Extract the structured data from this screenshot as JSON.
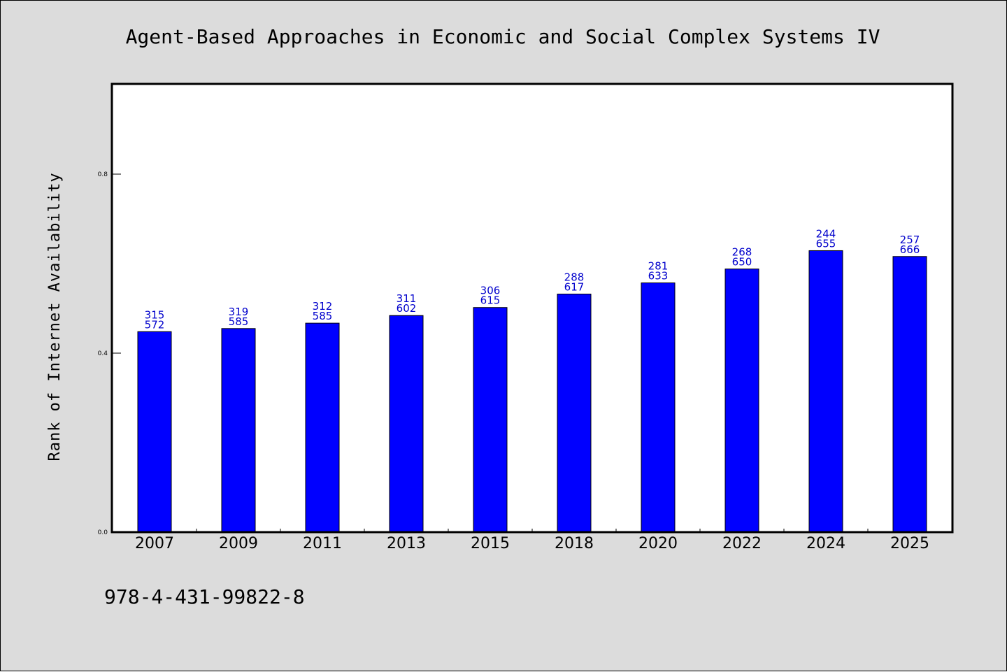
{
  "chart_data": {
    "type": "bar",
    "title": "Agent-Based Approaches in Economic and Social Complex Systems IV",
    "xlabel": "",
    "ylabel": "Rank of Internet Availability",
    "categories": [
      "2007",
      "2009",
      "2011",
      "2013",
      "2015",
      "2018",
      "2020",
      "2022",
      "2024",
      "2025"
    ],
    "values": [
      0.448,
      0.455,
      0.467,
      0.484,
      0.502,
      0.532,
      0.557,
      0.588,
      0.629,
      0.616
    ],
    "bar_labels_top": [
      "315",
      "319",
      "312",
      "311",
      "306",
      "288",
      "281",
      "268",
      "244",
      "257"
    ],
    "bar_labels_bottom": [
      "572",
      "585",
      "585",
      "602",
      "615",
      "617",
      "633",
      "650",
      "655",
      "666"
    ],
    "ylim": [
      0,
      1.0
    ],
    "yticks": [
      0.0,
      0.4,
      0.8
    ],
    "ytick_labels": [
      "0.0",
      "0.4",
      "0.8"
    ],
    "grid": false,
    "colors": {
      "bar": "#0000ff",
      "bar_label": "#0000cc",
      "background": "#dcdcdc",
      "plot_background": "#ffffff"
    }
  },
  "footer": {
    "isbn": "978-4-431-99822-8"
  }
}
